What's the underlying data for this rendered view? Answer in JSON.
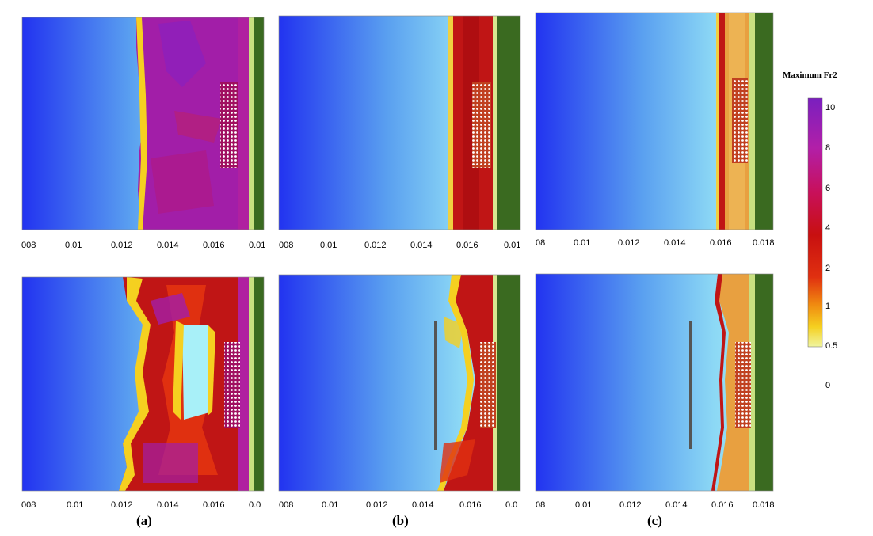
{
  "figure": {
    "legend": {
      "title": "Maximum Fr2",
      "ticks": [
        "10",
        "8",
        "6",
        "4",
        "2",
        "1",
        "0.5",
        "0"
      ],
      "colors": [
        "#7a1fbf",
        "#b21fa8",
        "#c8105a",
        "#c81010",
        "#e03010",
        "#f08a10",
        "#f5d020",
        "#f0f5a0"
      ]
    },
    "panel_labels": [
      "(a)",
      "(b)",
      "(c)"
    ],
    "x_ticks": {
      "col_a": [
        "008",
        "0.01",
        "0.012",
        "0.014",
        "0.016",
        "0.01"
      ],
      "col_b": [
        "008",
        "0.01",
        "0.012",
        "0.014",
        "0.016",
        "0.01"
      ],
      "col_c": [
        "08",
        "0.01",
        "0.012",
        "0.014",
        "0.016",
        "0.018"
      ],
      "col_a_bottom": [
        "008",
        "0.01",
        "0.012",
        "0.014",
        "0.016",
        "0.0"
      ],
      "col_b_bottom": [
        "008",
        "0.01",
        "0.012",
        "0.014",
        "0.016",
        "0.0"
      ],
      "col_c_bottom": [
        "08",
        "0.01",
        "0.012",
        "0.014",
        "0.016",
        "0.018"
      ]
    },
    "colors": {
      "deep_blue": "#2233f0",
      "light_blue": "#a8f0f8",
      "green": "#3a6a20",
      "magenta": "#a21ea8",
      "red": "#c01515"
    }
  }
}
